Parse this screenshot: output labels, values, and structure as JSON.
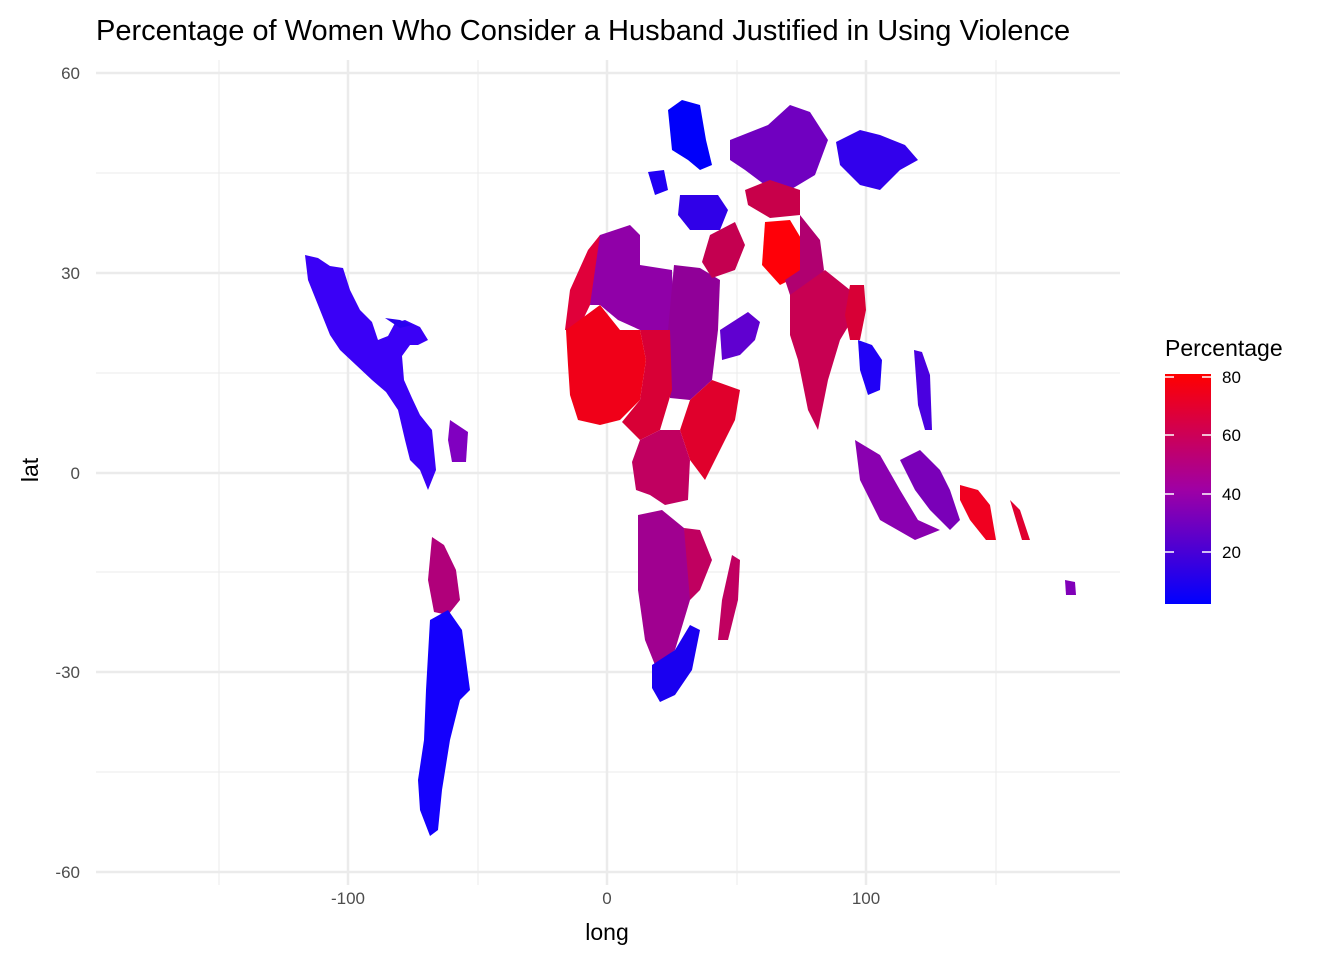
{
  "title": "Percentage of Women Who Consider a Husband Justified in Using Violence",
  "axes": {
    "x_label": "long",
    "y_label": "lat",
    "x_ticks": [
      "-100",
      "0",
      "100"
    ],
    "y_ticks": [
      "60",
      "30",
      "0",
      "-30",
      "-60"
    ]
  },
  "legend": {
    "title": "Percentage",
    "ticks": [
      "80",
      "60",
      "40",
      "20"
    ],
    "low_color": "#0000ff",
    "high_color": "#ff0000",
    "position": "right"
  },
  "chart_data": {
    "type": "heatmap",
    "kind": "choropleth",
    "title": "Percentage of Women Who Consider a Husband Justified in Using Violence",
    "xlabel": "long",
    "ylabel": "lat",
    "xlim": [
      -190,
      192
    ],
    "ylim": [
      -60,
      60
    ],
    "fill_scale": {
      "name": "Percentage",
      "low": "#0000ff",
      "high": "#ff0000",
      "range": [
        2,
        82
      ]
    },
    "grid": true,
    "regions": [
      {
        "region": "Mexico / Central America",
        "approx_percentage": 8
      },
      {
        "region": "Colombia / Venezuela",
        "approx_percentage": 10
      },
      {
        "region": "Guyana / Suriname",
        "approx_percentage": 25
      },
      {
        "region": "Peru / Bolivia",
        "approx_percentage": 40
      },
      {
        "region": "Argentina / Chile / Brazil (south)",
        "approx_percentage": 4
      },
      {
        "region": "Northwest Africa (Morocco)",
        "approx_percentage": 60
      },
      {
        "region": "Algeria / Libya",
        "approx_percentage": 35
      },
      {
        "region": "Egypt / Sudan",
        "approx_percentage": 35
      },
      {
        "region": "West Africa (Mali, Guinea)",
        "approx_percentage": 75
      },
      {
        "region": "Niger / Nigeria / Chad",
        "approx_percentage": 65
      },
      {
        "region": "Ethiopia / Somalia",
        "approx_percentage": 68
      },
      {
        "region": "Central Africa (DRC, Congo)",
        "approx_percentage": 55
      },
      {
        "region": "Angola / Zambia / Namibia",
        "approx_percentage": 35
      },
      {
        "region": "Mozambique / Madagascar",
        "approx_percentage": 45
      },
      {
        "region": "South Africa",
        "approx_percentage": 4
      },
      {
        "region": "Europe",
        "approx_percentage": 5
      },
      {
        "region": "Turkey",
        "approx_percentage": 15
      },
      {
        "region": "Middle East (Iraq, Syria, Jordan)",
        "approx_percentage": 55
      },
      {
        "region": "Kazakhstan / Central Asia",
        "approx_percentage": 20
      },
      {
        "region": "Afghanistan",
        "approx_percentage": 80
      },
      {
        "region": "Pakistan",
        "approx_percentage": 45
      },
      {
        "region": "India",
        "approx_percentage": 50
      },
      {
        "region": "Bangladesh / Myanmar",
        "approx_percentage": 40
      },
      {
        "region": "Mongolia",
        "approx_percentage": 12
      },
      {
        "region": "Thailand / Vietnam / Cambodia",
        "approx_percentage": 15
      },
      {
        "region": "Philippines",
        "approx_percentage": 15
      },
      {
        "region": "Indonesia",
        "approx_percentage": 35
      },
      {
        "region": "Papua New Guinea",
        "approx_percentage": 70
      },
      {
        "region": "Pacific islands",
        "approx_percentage": 30
      }
    ]
  }
}
